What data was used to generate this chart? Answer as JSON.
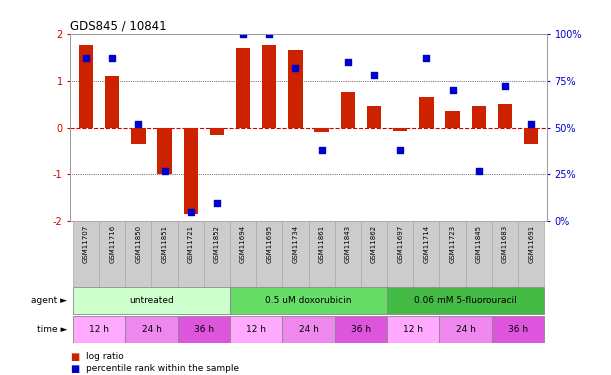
{
  "title": "GDS845 / 10841",
  "samples": [
    "GSM11707",
    "GSM11716",
    "GSM11850",
    "GSM11851",
    "GSM11721",
    "GSM11852",
    "GSM11694",
    "GSM11695",
    "GSM11734",
    "GSM11861",
    "GSM11843",
    "GSM11862",
    "GSM11697",
    "GSM11714",
    "GSM11723",
    "GSM11845",
    "GSM11683",
    "GSM11691"
  ],
  "log_ratio": [
    1.75,
    1.1,
    -0.35,
    -1.0,
    -1.85,
    -0.15,
    1.7,
    1.75,
    1.65,
    -0.1,
    0.75,
    0.45,
    -0.08,
    0.65,
    0.35,
    0.45,
    0.5,
    -0.35
  ],
  "percentile": [
    87,
    87,
    52,
    27,
    5,
    10,
    100,
    100,
    82,
    38,
    85,
    78,
    38,
    87,
    70,
    27,
    72,
    52
  ],
  "agents": [
    {
      "label": "untreated",
      "start": 0,
      "end": 6,
      "color": "#ccffcc"
    },
    {
      "label": "0.5 uM doxorubicin",
      "start": 6,
      "end": 12,
      "color": "#66dd66"
    },
    {
      "label": "0.06 mM 5-fluorouracil",
      "start": 12,
      "end": 18,
      "color": "#44bb44"
    }
  ],
  "times": [
    {
      "label": "12 h",
      "start": 0,
      "end": 2,
      "color": "#ffaaff"
    },
    {
      "label": "24 h",
      "start": 2,
      "end": 4,
      "color": "#ee88ee"
    },
    {
      "label": "36 h",
      "start": 4,
      "end": 6,
      "color": "#dd55dd"
    },
    {
      "label": "12 h",
      "start": 6,
      "end": 8,
      "color": "#ffaaff"
    },
    {
      "label": "24 h",
      "start": 8,
      "end": 10,
      "color": "#ee88ee"
    },
    {
      "label": "36 h",
      "start": 10,
      "end": 12,
      "color": "#dd55dd"
    },
    {
      "label": "12 h",
      "start": 12,
      "end": 14,
      "color": "#ffaaff"
    },
    {
      "label": "24 h",
      "start": 14,
      "end": 16,
      "color": "#ee88ee"
    },
    {
      "label": "36 h",
      "start": 16,
      "end": 18,
      "color": "#dd55dd"
    }
  ],
  "bar_color": "#cc2200",
  "dot_color": "#0000cc",
  "zero_line_color": "#cc0000",
  "grid_color": "#000000",
  "ylim_left": [
    -2,
    2
  ],
  "ylim_right": [
    0,
    100
  ],
  "yticks_left": [
    -2,
    -1,
    0,
    1,
    2
  ],
  "yticks_right": [
    0,
    25,
    50,
    75,
    100
  ],
  "ytick_labels_right": [
    "0%",
    "25%",
    "50%",
    "75%",
    "100%"
  ],
  "left_tick_color": "#cc0000",
  "right_tick_color": "#0000cc",
  "bg_color": "#ffffff",
  "sample_bg": "#cccccc",
  "sample_border": "#aaaaaa"
}
